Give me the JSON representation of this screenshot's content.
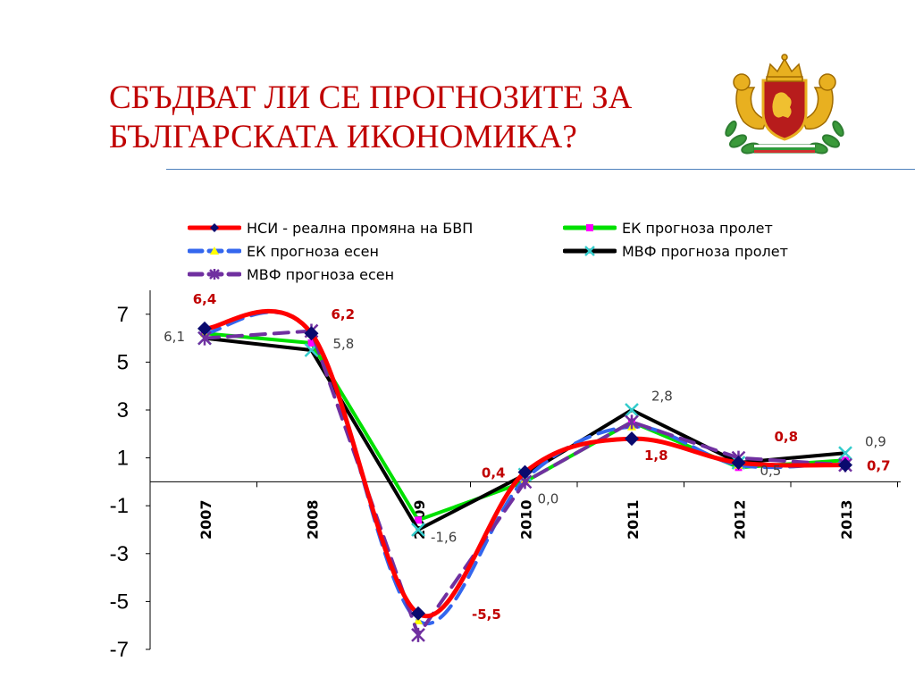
{
  "title": "СБЪДВАТ ЛИ СЕ ПРОГНОЗИТЕ ЗА БЪЛГАРСКАТА ИКОНОМИКА?",
  "emblem": {
    "icon": "bulgarian-coat-of-arms-icon"
  },
  "chart_data": {
    "type": "line",
    "categories": [
      "2007",
      "2008",
      "2009",
      "2010",
      "2011",
      "2012",
      "2013"
    ],
    "ylim": [
      -7,
      8
    ],
    "yticks": [
      "7",
      "5",
      "3",
      "1",
      "-1",
      "-3",
      "-5",
      "-7"
    ],
    "grid": false,
    "legend_position": "top",
    "series": [
      {
        "name": "НСИ - реална промяна на БВП",
        "color": "#ff0000",
        "marker": "diamond",
        "marker_color": "#0a0a6e",
        "style": "solid-smooth",
        "values": [
          6.4,
          6.2,
          -5.5,
          0.4,
          1.8,
          0.8,
          0.7
        ]
      },
      {
        "name": "ЕК прогноза пролет",
        "color": "#00e000",
        "marker": "square",
        "marker_color": "#ff00ff",
        "style": "solid",
        "values": [
          6.2,
          5.8,
          -1.6,
          0.0,
          2.5,
          0.6,
          0.9
        ]
      },
      {
        "name": "ЕК прогноза есен",
        "color": "#3366ee",
        "marker": "triangle",
        "marker_color": "#ffff00",
        "style": "dashed-smooth",
        "values": [
          6.2,
          6.2,
          -5.8,
          0.1,
          2.3,
          0.7,
          0.8
        ]
      },
      {
        "name": "МВФ прогноза пролет",
        "color": "#000000",
        "marker": "x",
        "marker_color": "#33cccc",
        "style": "solid",
        "values": [
          6.0,
          5.5,
          -2.0,
          0.3,
          3.0,
          0.8,
          1.2
        ]
      },
      {
        "name": "МВФ прогноза есен",
        "color": "#7030a0",
        "marker": "star",
        "marker_color": "#7030a0",
        "style": "dashed",
        "values": [
          6.0,
          6.3,
          -6.4,
          0.0,
          2.5,
          1.0,
          0.7
        ]
      }
    ],
    "data_labels": [
      {
        "text": "6,4",
        "category": "2007",
        "value": 6.4,
        "color": "#c00000",
        "bold": true,
        "pos": "above"
      },
      {
        "text": "6,1",
        "category": "2007",
        "value": 6.1,
        "color": "#404040",
        "bold": false,
        "pos": "left"
      },
      {
        "text": "6,2",
        "category": "2008",
        "value": 6.2,
        "color": "#c00000",
        "bold": true,
        "pos": "above-right"
      },
      {
        "text": "5,8",
        "category": "2008",
        "value": 5.8,
        "color": "#404040",
        "bold": false,
        "pos": "right"
      },
      {
        "text": "-1,6",
        "category": "2009",
        "value": -1.6,
        "color": "#404040",
        "bold": false,
        "pos": "below-right"
      },
      {
        "text": "-5,5",
        "category": "2009",
        "value": -5.5,
        "color": "#c00000",
        "bold": true,
        "pos": "below-right-far"
      },
      {
        "text": "0,4",
        "category": "2010",
        "value": 0.4,
        "color": "#c00000",
        "bold": true,
        "pos": "left"
      },
      {
        "text": "0,0",
        "category": "2010",
        "value": 0.0,
        "color": "#404040",
        "bold": false,
        "pos": "below-right"
      },
      {
        "text": "2,8",
        "category": "2011",
        "value": 2.8,
        "color": "#404040",
        "bold": false,
        "pos": "above-right"
      },
      {
        "text": "1,8",
        "category": "2011",
        "value": 1.8,
        "color": "#c00000",
        "bold": true,
        "pos": "below-right"
      },
      {
        "text": "0,8",
        "category": "2012",
        "value": 0.8,
        "color": "#c00000",
        "bold": true,
        "pos": "above-right-far"
      },
      {
        "text": "0,5",
        "category": "2012",
        "value": 0.5,
        "color": "#404040",
        "bold": false,
        "pos": "right"
      },
      {
        "text": "0,9",
        "category": "2013",
        "value": 0.9,
        "color": "#404040",
        "bold": false,
        "pos": "above-right"
      },
      {
        "text": "0,7",
        "category": "2013",
        "value": 0.7,
        "color": "#c00000",
        "bold": true,
        "pos": "right"
      }
    ]
  }
}
